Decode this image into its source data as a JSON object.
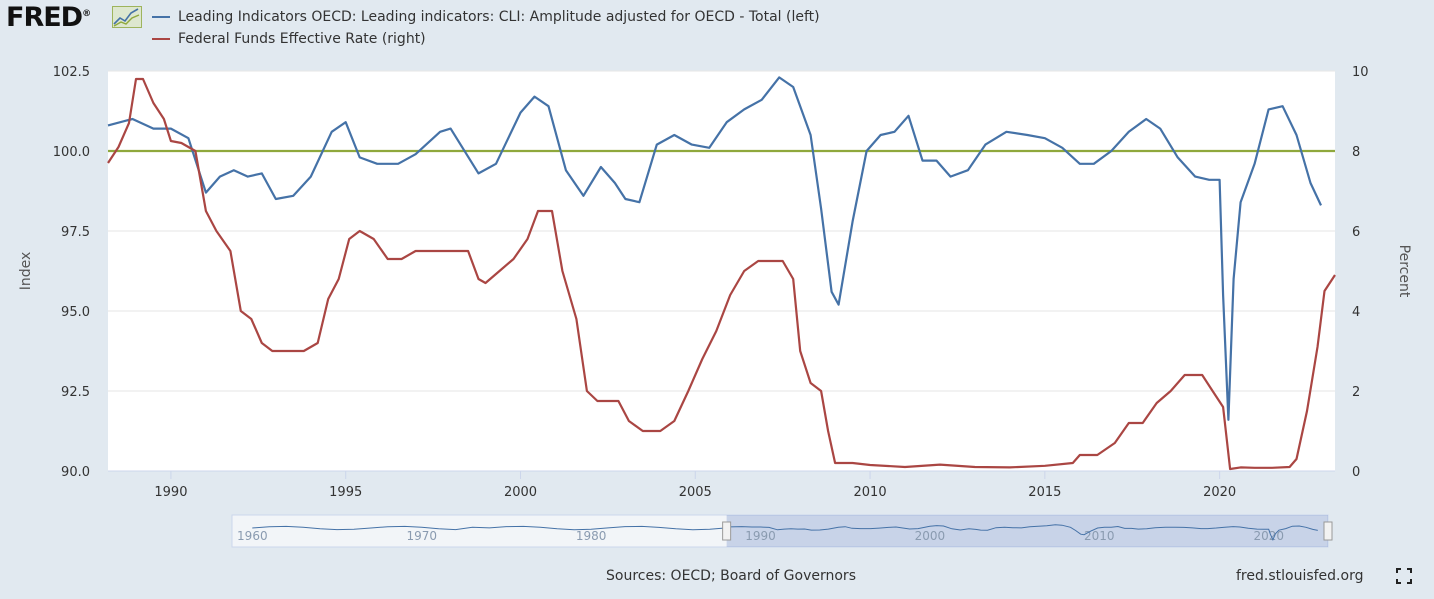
{
  "brand": {
    "logo_text": "FRED",
    "logo_mark": "®"
  },
  "legend": {
    "items": [
      {
        "label": "Leading Indicators OECD: Leading indicators: CLI: Amplitude adjusted for OECD - Total (left)",
        "color": "#4572a7"
      },
      {
        "label": "Federal Funds Effective Rate (right)",
        "color": "#aa4643"
      }
    ]
  },
  "footer": {
    "sources": "Sources: OECD; Board of Governors",
    "site": "fred.stlouisfed.org"
  },
  "chart_data": {
    "type": "line",
    "xlim": [
      1988.2,
      2023.3
    ],
    "x_ticks": [
      "1990",
      "1995",
      "2000",
      "2005",
      "2010",
      "2015",
      "2020"
    ],
    "y_left": {
      "label": "Index",
      "ylim": [
        90,
        102.5
      ],
      "ticks": [
        "90.0",
        "92.5",
        "95.0",
        "97.5",
        "100.0",
        "102.5"
      ]
    },
    "y_right": {
      "label": "Percent",
      "ylim": [
        0,
        10
      ],
      "ticks": [
        "0",
        "2",
        "4",
        "6",
        "8",
        "10"
      ]
    },
    "reference_line": {
      "axis": "left",
      "value": 100,
      "color": "#8fa83c"
    },
    "grid": "horizontal",
    "series": [
      {
        "name": "Leading Indicators OECD: Leading indicators: CLI: Amplitude adjusted for OECD - Total (left)",
        "axis": "left",
        "color": "#4572a7",
        "x": [
          1988.2,
          1988.9,
          1989.5,
          1990.0,
          1990.5,
          1991.0,
          1991.4,
          1991.8,
          1992.2,
          1992.6,
          1993.0,
          1993.5,
          1994.0,
          1994.6,
          1995.0,
          1995.4,
          1995.9,
          1996.5,
          1997.0,
          1997.7,
          1998.0,
          1998.8,
          1999.3,
          2000.0,
          2000.4,
          2000.8,
          2001.3,
          2001.8,
          2002.3,
          2002.7,
          2003.0,
          2003.4,
          2003.9,
          2004.4,
          2004.9,
          2005.4,
          2005.9,
          2006.4,
          2006.9,
          2007.4,
          2007.8,
          2008.3,
          2008.6,
          2008.9,
          2009.1,
          2009.5,
          2009.9,
          2010.3,
          2010.7,
          2011.1,
          2011.5,
          2011.9,
          2012.3,
          2012.8,
          2013.3,
          2013.9,
          2014.5,
          2015.0,
          2015.5,
          2016.0,
          2016.4,
          2016.9,
          2017.4,
          2017.9,
          2018.3,
          2018.8,
          2019.3,
          2019.7,
          2020.0,
          2020.1,
          2020.25,
          2020.4,
          2020.6,
          2021.0,
          2021.4,
          2021.8,
          2022.2,
          2022.6,
          2022.9
        ],
        "values": [
          100.8,
          101.0,
          100.7,
          100.7,
          100.4,
          98.7,
          99.2,
          99.4,
          99.2,
          99.3,
          98.5,
          98.6,
          99.2,
          100.6,
          100.9,
          99.8,
          99.6,
          99.6,
          99.9,
          100.6,
          100.7,
          99.3,
          99.6,
          101.2,
          101.7,
          101.4,
          99.4,
          98.6,
          99.5,
          99.0,
          98.5,
          98.4,
          100.2,
          100.5,
          100.2,
          100.1,
          100.9,
          101.3,
          101.6,
          102.3,
          102.0,
          100.5,
          98.2,
          95.6,
          95.2,
          97.8,
          100.0,
          100.5,
          100.6,
          101.1,
          99.7,
          99.7,
          99.2,
          99.4,
          100.2,
          100.6,
          100.5,
          100.4,
          100.1,
          99.6,
          99.6,
          100.0,
          100.6,
          101.0,
          100.7,
          99.8,
          99.2,
          99.1,
          99.1,
          95.5,
          91.6,
          96.0,
          98.4,
          99.6,
          101.3,
          101.4,
          100.5,
          99.0,
          98.3
        ]
      },
      {
        "name": "Federal Funds Effective Rate (right)",
        "axis": "right",
        "color": "#aa4643",
        "x": [
          1988.2,
          1988.5,
          1988.8,
          1989.0,
          1989.2,
          1989.5,
          1989.8,
          1990.0,
          1990.3,
          1990.7,
          1991.0,
          1991.3,
          1991.7,
          1992.0,
          1992.3,
          1992.6,
          1992.9,
          1993.3,
          1993.8,
          1994.2,
          1994.5,
          1994.8,
          1995.1,
          1995.4,
          1995.8,
          1996.2,
          1996.6,
          1997.0,
          1997.5,
          1998.0,
          1998.5,
          1998.8,
          1999.0,
          1999.4,
          1999.8,
          2000.2,
          2000.5,
          2000.9,
          2001.2,
          2001.6,
          2001.9,
          2002.2,
          2002.8,
          2003.1,
          2003.5,
          2004.0,
          2004.4,
          2004.8,
          2005.2,
          2005.6,
          2006.0,
          2006.4,
          2006.8,
          2007.2,
          2007.5,
          2007.8,
          2008.0,
          2008.3,
          2008.6,
          2008.8,
          2009.0,
          2009.5,
          2010.0,
          2011.0,
          2012.0,
          2013.0,
          2014.0,
          2015.0,
          2015.8,
          2016.0,
          2016.5,
          2017.0,
          2017.4,
          2017.8,
          2018.2,
          2018.6,
          2019.0,
          2019.5,
          2019.8,
          2020.1,
          2020.3,
          2020.6,
          2021.0,
          2021.5,
          2022.0,
          2022.2,
          2022.5,
          2022.8,
          2023.0,
          2023.3
        ],
        "values": [
          7.7,
          8.1,
          8.7,
          9.8,
          9.8,
          9.2,
          8.8,
          8.25,
          8.2,
          8.0,
          6.5,
          6.0,
          5.5,
          4.0,
          3.8,
          3.2,
          3.0,
          3.0,
          3.0,
          3.2,
          4.3,
          4.8,
          5.8,
          6.0,
          5.8,
          5.3,
          5.3,
          5.5,
          5.5,
          5.5,
          5.5,
          4.8,
          4.7,
          5.0,
          5.3,
          5.8,
          6.5,
          6.5,
          5.0,
          3.8,
          2.0,
          1.75,
          1.75,
          1.25,
          1.0,
          1.0,
          1.25,
          2.0,
          2.8,
          3.5,
          4.4,
          5.0,
          5.25,
          5.25,
          5.25,
          4.8,
          3.0,
          2.2,
          2.0,
          1.0,
          0.2,
          0.2,
          0.15,
          0.1,
          0.16,
          0.1,
          0.09,
          0.13,
          0.2,
          0.4,
          0.4,
          0.7,
          1.2,
          1.2,
          1.7,
          2.0,
          2.4,
          2.4,
          2.0,
          1.6,
          0.05,
          0.09,
          0.08,
          0.08,
          0.1,
          0.3,
          1.5,
          3.1,
          4.5,
          4.9
        ]
      }
    ]
  },
  "navigator": {
    "tick_labels": [
      "1960",
      "1970",
      "1980",
      "1990",
      "2000",
      "2010",
      "2020"
    ],
    "tick_years": [
      1960,
      1970,
      1980,
      1990,
      2000,
      2010,
      2020
    ],
    "range_years": [
      1958.8,
      2023.5
    ],
    "selected_range": [
      "1988",
      "2023"
    ]
  }
}
